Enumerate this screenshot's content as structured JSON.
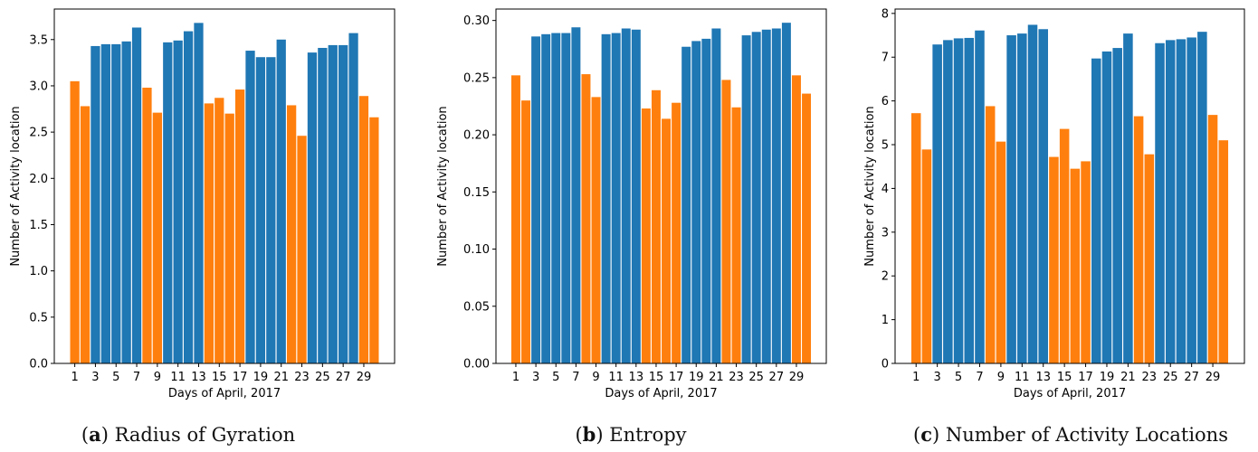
{
  "chart_data": [
    {
      "type": "bar",
      "xlabel": "Days of April, 2017",
      "ylabel": "Number of Activity location",
      "ylim": [
        0,
        3.83
      ],
      "yticks": [
        "0.0",
        "0.5",
        "1.0",
        "1.5",
        "2.0",
        "2.5",
        "3.0",
        "3.5"
      ],
      "caption": {
        "letter": "a",
        "text": "Radius of Gyration"
      },
      "categories": [
        1,
        2,
        3,
        4,
        5,
        6,
        7,
        8,
        9,
        10,
        11,
        12,
        13,
        14,
        15,
        16,
        17,
        18,
        19,
        20,
        21,
        22,
        23,
        24,
        25,
        26,
        27,
        28,
        29,
        30
      ],
      "values": [
        3.05,
        2.78,
        3.43,
        3.45,
        3.45,
        3.48,
        3.63,
        2.98,
        2.71,
        3.47,
        3.49,
        3.59,
        3.68,
        2.81,
        2.87,
        2.7,
        2.96,
        3.38,
        3.31,
        3.31,
        3.5,
        2.79,
        2.46,
        3.36,
        3.41,
        3.44,
        3.44,
        3.57,
        2.89,
        2.66
      ]
    },
    {
      "type": "bar",
      "xlabel": "Days of April, 2017",
      "ylabel": "Number of Activity location",
      "ylim": [
        0,
        0.31
      ],
      "yticks": [
        "0.00",
        "0.05",
        "0.10",
        "0.15",
        "0.20",
        "0.25",
        "0.30"
      ],
      "caption": {
        "letter": "b",
        "text": "Entropy"
      },
      "categories": [
        1,
        2,
        3,
        4,
        5,
        6,
        7,
        8,
        9,
        10,
        11,
        12,
        13,
        14,
        15,
        16,
        17,
        18,
        19,
        20,
        21,
        22,
        23,
        24,
        25,
        26,
        27,
        28,
        29,
        30
      ],
      "values": [
        0.252,
        0.23,
        0.286,
        0.288,
        0.289,
        0.289,
        0.294,
        0.253,
        0.233,
        0.288,
        0.289,
        0.293,
        0.292,
        0.223,
        0.239,
        0.214,
        0.228,
        0.277,
        0.282,
        0.284,
        0.293,
        0.248,
        0.224,
        0.287,
        0.29,
        0.292,
        0.293,
        0.298,
        0.252,
        0.236
      ]
    },
    {
      "type": "bar",
      "xlabel": "Days of April, 2017",
      "ylabel": "Number of Activity location",
      "ylim": [
        0,
        8.1
      ],
      "yticks": [
        "0",
        "1",
        "2",
        "3",
        "4",
        "5",
        "6",
        "7",
        "8"
      ],
      "caption": {
        "letter": "c",
        "text": "Number of Activity Locations"
      },
      "categories": [
        1,
        2,
        3,
        4,
        5,
        6,
        7,
        8,
        9,
        10,
        11,
        12,
        13,
        14,
        15,
        16,
        17,
        18,
        19,
        20,
        21,
        22,
        23,
        24,
        25,
        26,
        27,
        28,
        29,
        30
      ],
      "values": [
        5.72,
        4.89,
        7.29,
        7.39,
        7.43,
        7.44,
        7.61,
        5.88,
        5.07,
        7.5,
        7.54,
        7.74,
        7.64,
        4.72,
        5.36,
        4.45,
        4.62,
        6.97,
        7.13,
        7.21,
        7.54,
        5.65,
        4.78,
        7.32,
        7.39,
        7.41,
        7.45,
        7.58,
        5.68,
        5.1
      ]
    }
  ],
  "xticks": [
    "1",
    "3",
    "5",
    "7",
    "9",
    "11",
    "13",
    "15",
    "17",
    "19",
    "21",
    "23",
    "25",
    "27",
    "29"
  ],
  "colors": {
    "weekday": "#1f77b4",
    "weekend": "#ff7f0e",
    "weekend_days": [
      1,
      2,
      8,
      9,
      14,
      15,
      16,
      17,
      22,
      23,
      29,
      30
    ]
  }
}
